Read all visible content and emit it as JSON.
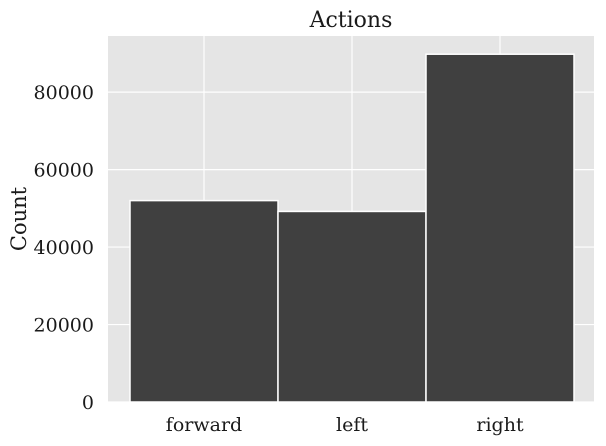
{
  "chart_data": {
    "type": "bar",
    "title": "Actions",
    "xlabel": "",
    "ylabel": "Count",
    "categories": [
      "forward",
      "left",
      "right"
    ],
    "values": [
      52000,
      49200,
      89800
    ],
    "ylim": [
      0,
      94500
    ],
    "yticks": [
      0,
      20000,
      40000,
      60000,
      80000
    ],
    "ytick_labels": [
      "0",
      "20000",
      "40000",
      "60000",
      "80000"
    ],
    "grid": true,
    "legend": "none",
    "colors": {
      "background": "#e5e5e5",
      "grid": "#ffffff",
      "bar": "#3a3a3a",
      "bar_edge": "#ffffff"
    }
  }
}
